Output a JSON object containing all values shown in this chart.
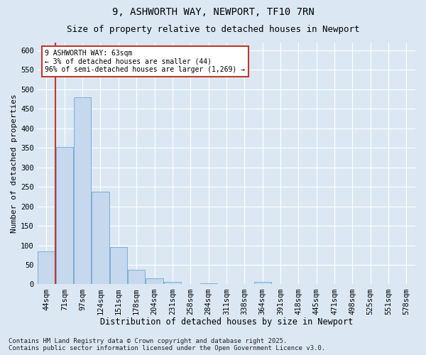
{
  "title1": "9, ASHWORTH WAY, NEWPORT, TF10 7RN",
  "title2": "Size of property relative to detached houses in Newport",
  "xlabel": "Distribution of detached houses by size in Newport",
  "ylabel": "Number of detached properties",
  "categories": [
    "44sqm",
    "71sqm",
    "97sqm",
    "124sqm",
    "151sqm",
    "178sqm",
    "204sqm",
    "231sqm",
    "258sqm",
    "284sqm",
    "311sqm",
    "338sqm",
    "364sqm",
    "391sqm",
    "418sqm",
    "445sqm",
    "471sqm",
    "498sqm",
    "525sqm",
    "551sqm",
    "578sqm"
  ],
  "values": [
    85,
    352,
    480,
    237,
    96,
    37,
    15,
    6,
    0,
    2,
    0,
    0,
    7,
    0,
    0,
    0,
    0,
    0,
    0,
    0,
    0
  ],
  "bar_color": "#c5d8ee",
  "bar_edge_color": "#7aafd4",
  "vline_color": "#c0392b",
  "vline_x": 0.5,
  "annotation_line1": "9 ASHWORTH WAY: 63sqm",
  "annotation_line2": "← 3% of detached houses are smaller (44)",
  "annotation_line3": "96% of semi-detached houses are larger (1,269) →",
  "annotation_box_color": "#c0392b",
  "annotation_fill": "#ffffff",
  "ylim": [
    0,
    620
  ],
  "yticks": [
    0,
    50,
    100,
    150,
    200,
    250,
    300,
    350,
    400,
    450,
    500,
    550,
    600
  ],
  "background_color": "#dbe8f4",
  "plot_bg_color": "#dbe8f4",
  "grid_color": "#ffffff",
  "footer": "Contains HM Land Registry data © Crown copyright and database right 2025.\nContains public sector information licensed under the Open Government Licence v3.0.",
  "title1_fontsize": 10,
  "title2_fontsize": 9,
  "xlabel_fontsize": 8.5,
  "ylabel_fontsize": 8,
  "tick_fontsize": 7.5,
  "footer_fontsize": 6.5
}
